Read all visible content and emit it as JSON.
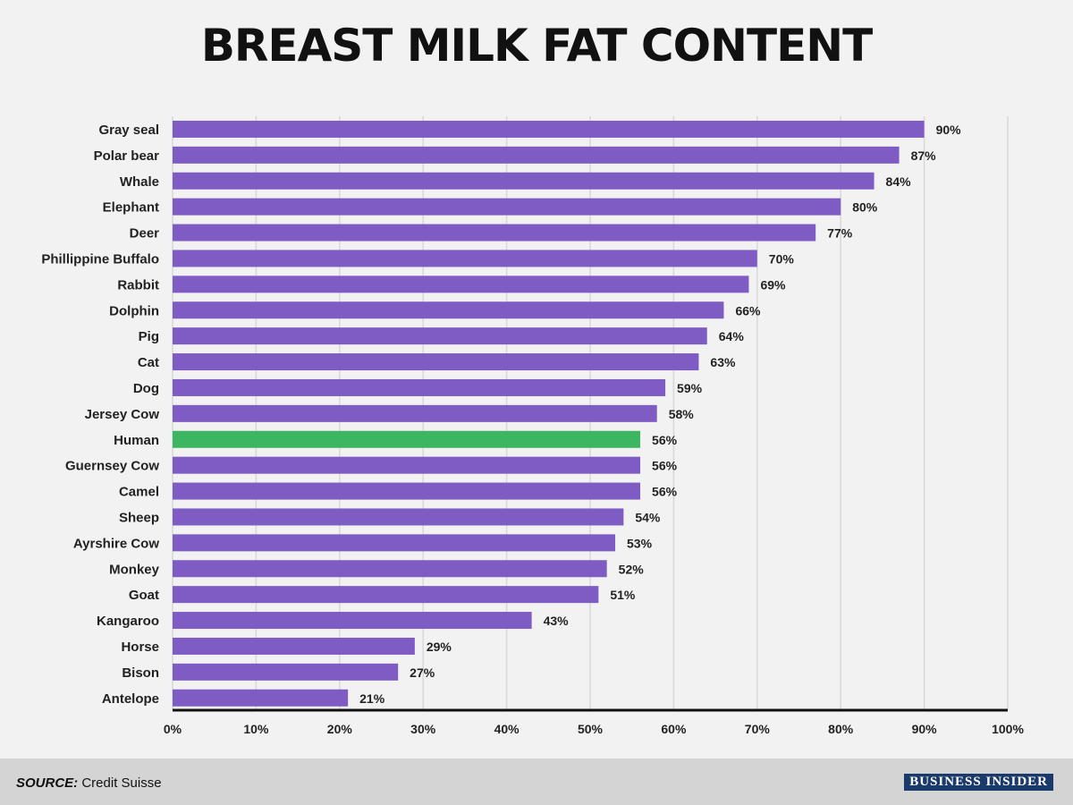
{
  "title": "BREAST MILK FAT CONTENT",
  "source_label": "SOURCE:",
  "source_text": "Credit Suisse",
  "brand": "BUSINESS INSIDER",
  "colors": {
    "bar": "#7f5cc4",
    "highlight": "#3db661",
    "grid": "#d8d8d8",
    "axis": "#111111"
  },
  "chart_data": {
    "type": "bar",
    "orientation": "horizontal",
    "title": "BREAST MILK FAT CONTENT",
    "categories": [
      "Gray seal",
      "Polar bear",
      "Whale",
      "Elephant",
      "Deer",
      "Phillippine Buffalo",
      "Rabbit",
      "Dolphin",
      "Pig",
      "Cat",
      "Dog",
      "Jersey Cow",
      "Human",
      "Guernsey Cow",
      "Camel",
      "Sheep",
      "Ayrshire Cow",
      "Monkey",
      "Goat",
      "Kangaroo",
      "Horse",
      "Bison",
      "Antelope"
    ],
    "values": [
      90,
      87,
      84,
      80,
      77,
      70,
      69,
      66,
      64,
      63,
      59,
      58,
      56,
      56,
      56,
      54,
      53,
      52,
      51,
      43,
      29,
      27,
      21
    ],
    "value_labels": [
      "90%",
      "87%",
      "84%",
      "80%",
      "77%",
      "70%",
      "69%",
      "66%",
      "64%",
      "63%",
      "59%",
      "58%",
      "56%",
      "56%",
      "56%",
      "54%",
      "53%",
      "52%",
      "51%",
      "43%",
      "29%",
      "27%",
      "21%"
    ],
    "highlight": "Human",
    "xlim": [
      0,
      100
    ],
    "xticks": [
      0,
      10,
      20,
      30,
      40,
      50,
      60,
      70,
      80,
      90,
      100
    ],
    "xtick_labels": [
      "0%",
      "10%",
      "20%",
      "30%",
      "40%",
      "50%",
      "60%",
      "70%",
      "80%",
      "90%",
      "100%"
    ],
    "grid": true,
    "legend": "none"
  }
}
